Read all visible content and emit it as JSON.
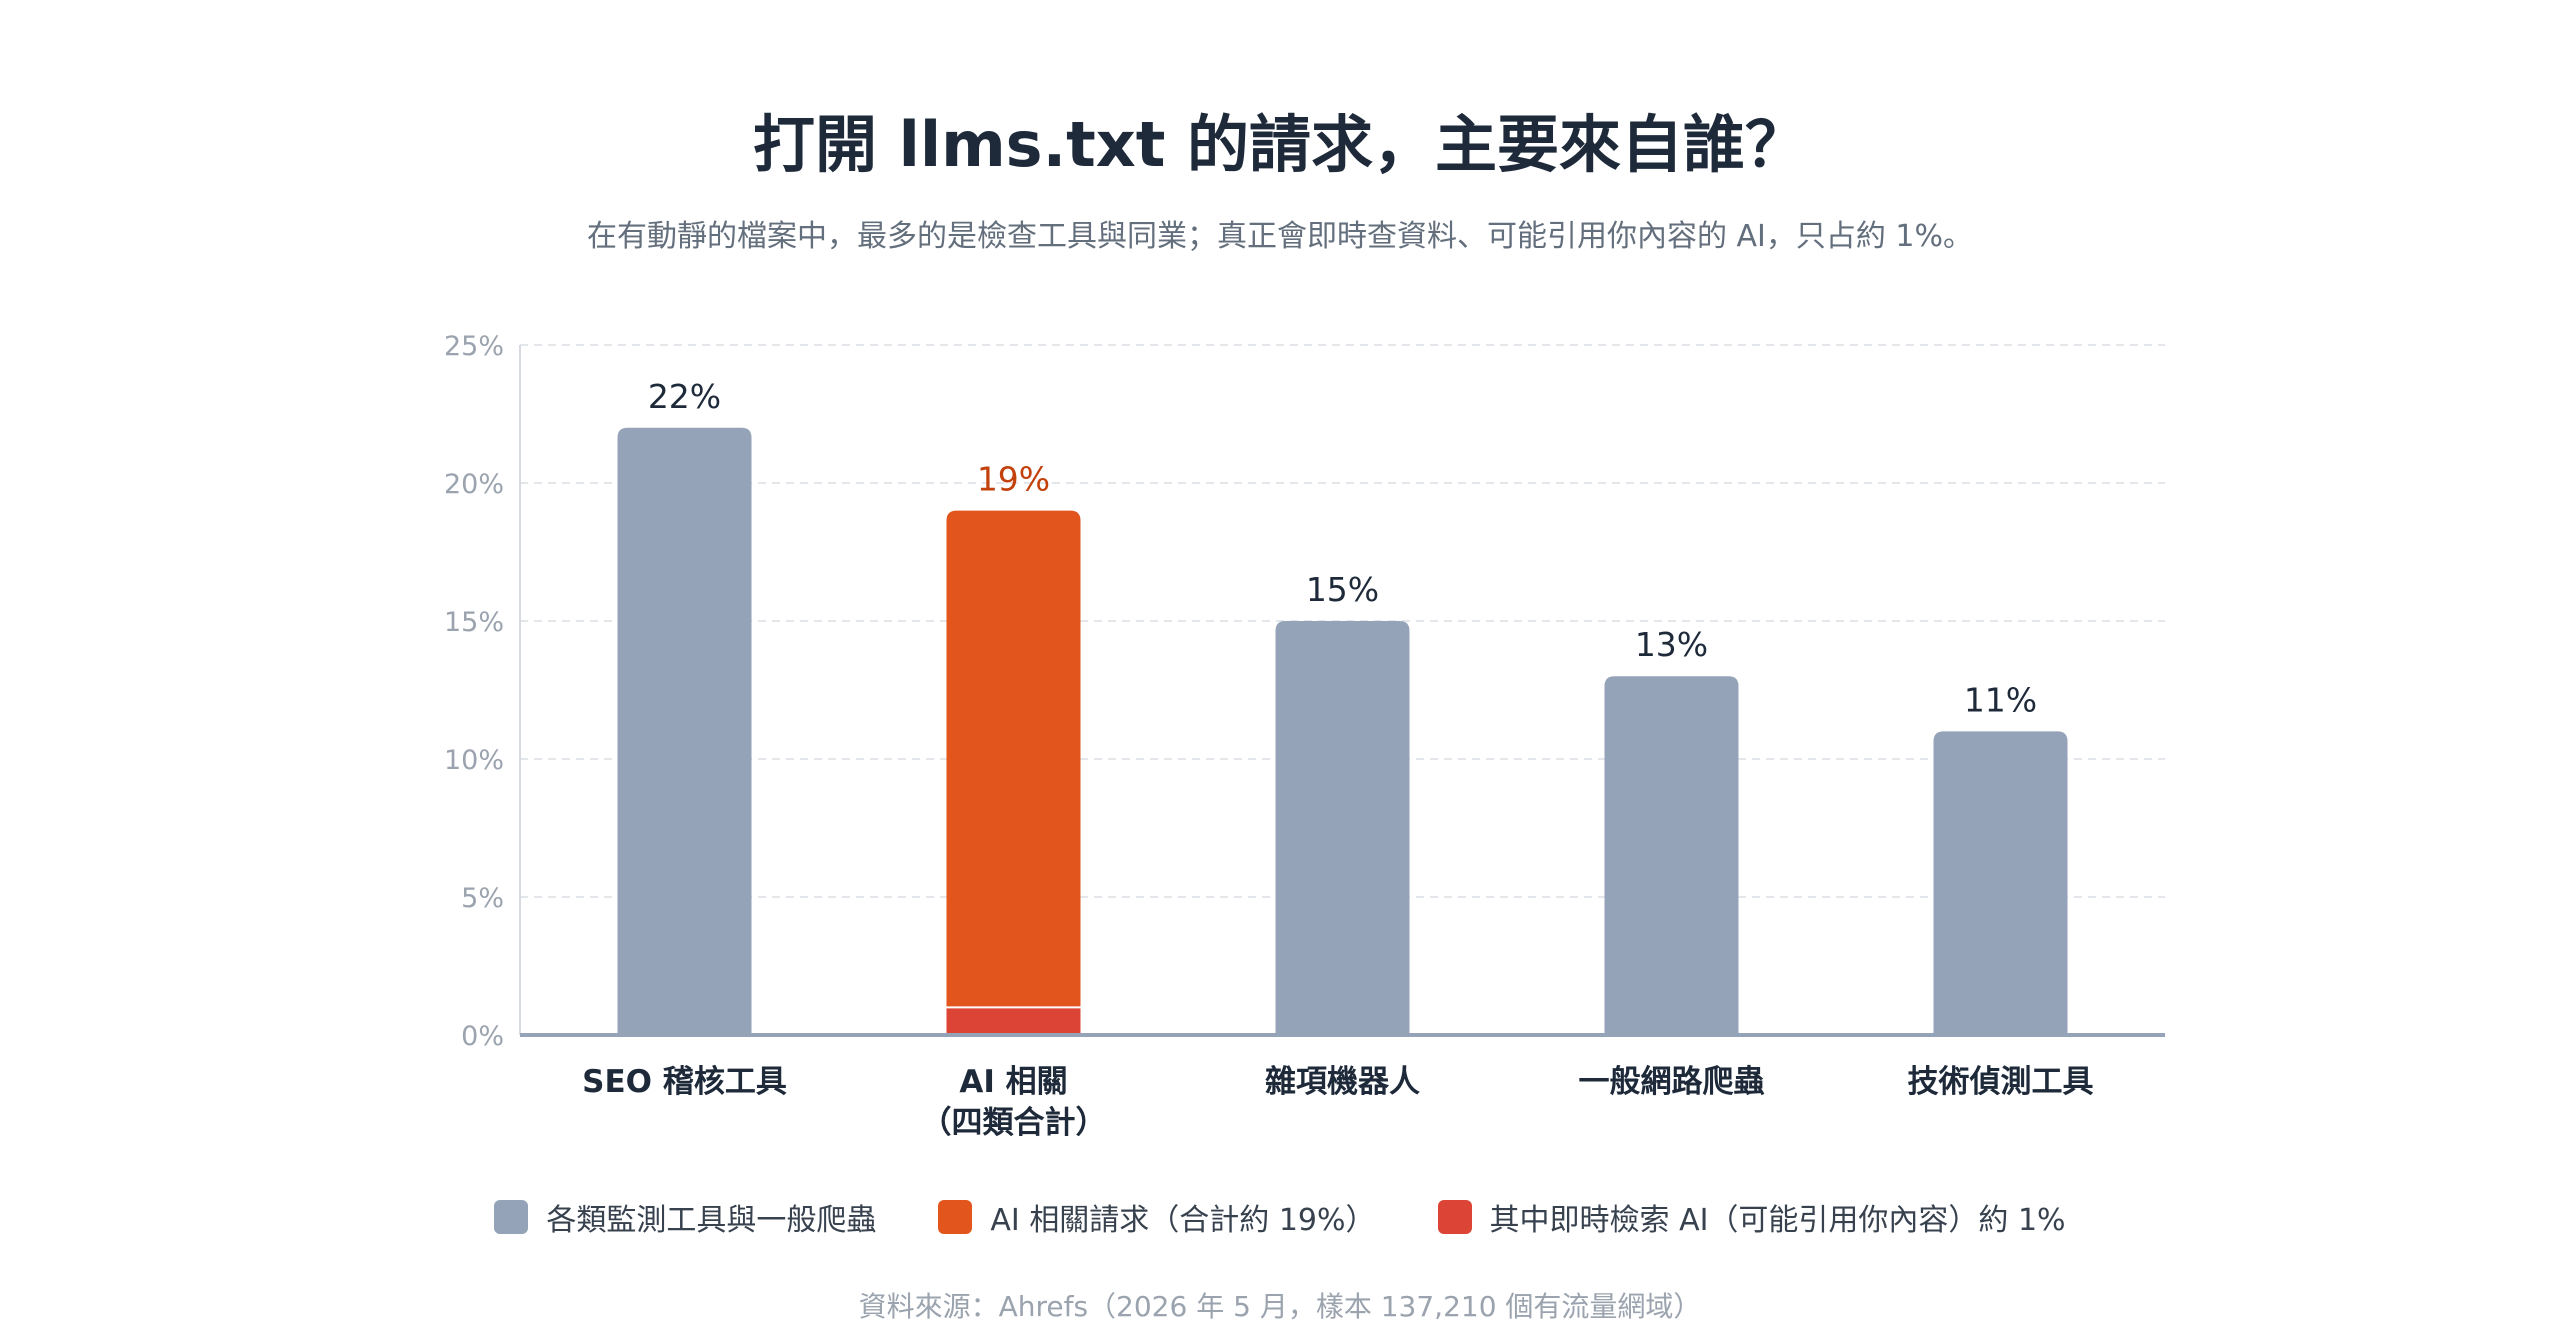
{
  "title": "打開 llms.txt 的請求，主要來自誰？",
  "subtitle": "在有動靜的檔案中，最多的是檢查工具與同業；真正會即時查資料、可能引用你內容的 AI，只占約 1%。",
  "source": "資料來源：Ahrefs（2026 年 5 月，樣本 137,210 個有流量網域）",
  "colors": {
    "gray_bar": "#94a3b8",
    "orange_bar": "#e2561e",
    "red_bar": "#dc4436",
    "ai_label": "#c2410c",
    "axis": "#94a3b8",
    "grid": "#e3e7ec"
  },
  "legend": [
    {
      "label": "各類監測工具與一般爬蟲",
      "color": "#94a3b8"
    },
    {
      "label": "AI 相關請求（合計約 19%）",
      "color": "#e2561e"
    },
    {
      "label": "其中即時檢索 AI（可能引用你內容）約 1%",
      "color": "#dc4436"
    }
  ],
  "chart_data": {
    "type": "bar",
    "y_ticks": [
      "25%",
      "20%",
      "15%",
      "10%",
      "5%",
      "0%"
    ],
    "ylim": [
      0,
      25
    ],
    "grid": true,
    "categories": [
      {
        "label": "SEO 稽核工具",
        "label2": "",
        "value": 22,
        "data_label": "22%",
        "group": "gray"
      },
      {
        "label": "AI 相關",
        "label2": "（四類合計）",
        "value": 19,
        "data_label": "19%",
        "group": "orange",
        "stacked_realtime_value": 1
      },
      {
        "label": "雜項機器人",
        "label2": "",
        "value": 15,
        "data_label": "15%",
        "group": "gray"
      },
      {
        "label": "一般網路爬蟲",
        "label2": "",
        "value": 13,
        "data_label": "13%",
        "group": "gray"
      },
      {
        "label": "技術偵測工具",
        "label2": "",
        "value": 11,
        "data_label": "11%",
        "group": "gray"
      }
    ]
  }
}
